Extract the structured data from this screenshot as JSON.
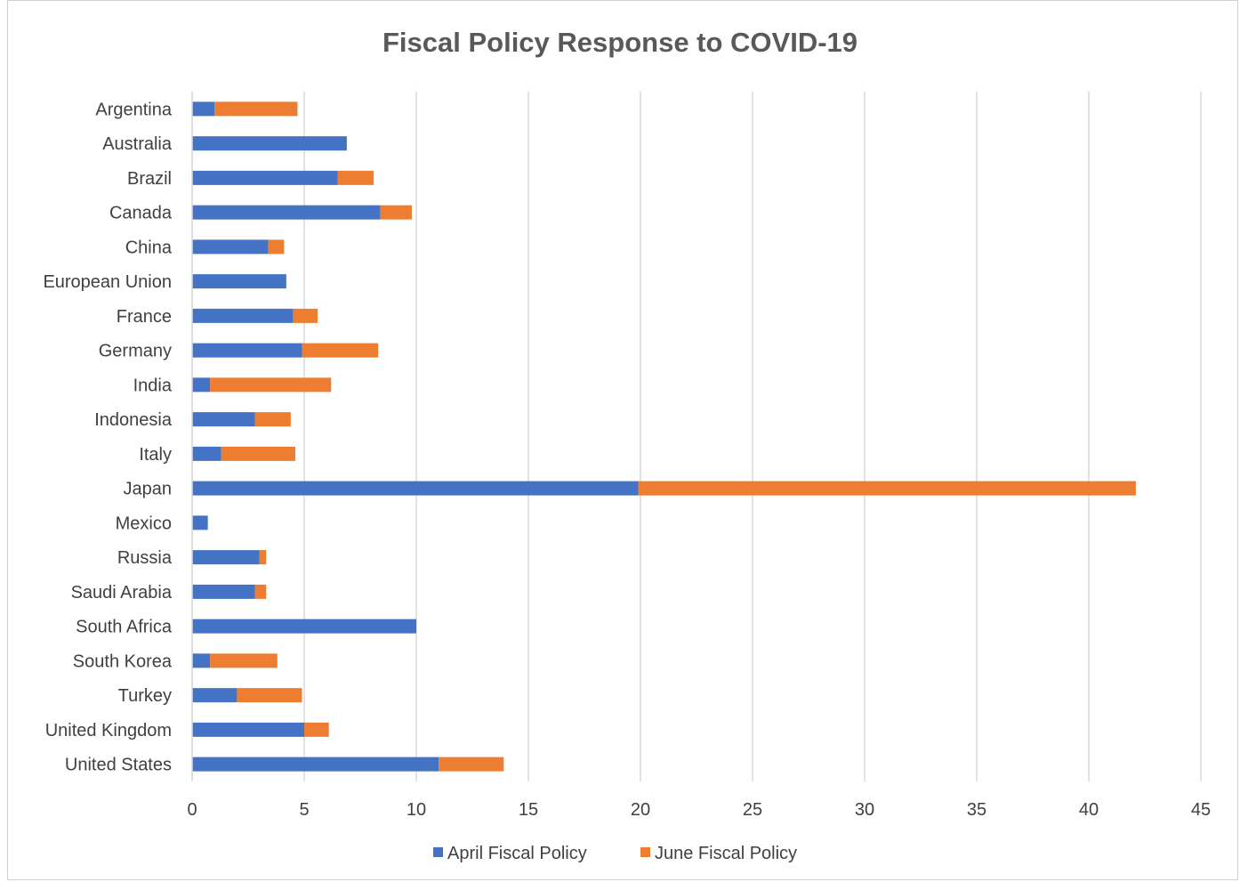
{
  "chart_data": {
    "type": "bar",
    "orientation": "horizontal",
    "stacked": true,
    "title": "Fiscal Policy Response to COVID-19",
    "xlabel": "",
    "ylabel": "",
    "xlim": [
      0,
      45
    ],
    "xticks": [
      0,
      5,
      10,
      15,
      20,
      25,
      30,
      35,
      40,
      45
    ],
    "grid": "vertical",
    "legend_position": "bottom",
    "categories": [
      "Argentina",
      "Australia",
      "Brazil",
      "Canada",
      "China",
      "European Union",
      "France",
      "Germany",
      "India",
      "Indonesia",
      "Italy",
      "Japan",
      "Mexico",
      "Russia",
      "Saudi Arabia",
      "South Africa",
      "South Korea",
      "Turkey",
      "United Kingdom",
      "United States"
    ],
    "series": [
      {
        "name": "April Fiscal Policy",
        "color": "#4472C4",
        "values": [
          1.0,
          6.9,
          6.5,
          8.4,
          3.4,
          4.2,
          4.5,
          4.9,
          0.8,
          2.8,
          1.3,
          19.9,
          0.7,
          3.0,
          2.8,
          10.0,
          0.8,
          2.0,
          5.0,
          11.0
        ]
      },
      {
        "name": "June Fiscal Policy",
        "color": "#ED7D31",
        "values": [
          3.7,
          0.0,
          1.6,
          1.4,
          0.7,
          0.0,
          1.1,
          3.4,
          5.4,
          1.6,
          3.3,
          22.2,
          0.0,
          0.3,
          0.5,
          0.0,
          3.0,
          2.9,
          1.1,
          2.9
        ]
      }
    ]
  }
}
